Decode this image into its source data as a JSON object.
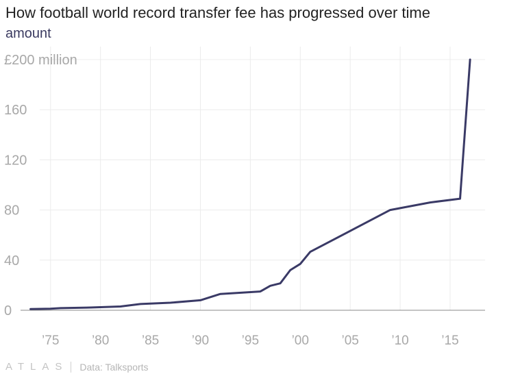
{
  "header": {
    "title": "How football world record transfer fee has progressed over time",
    "subtitle": "amount"
  },
  "footer": {
    "brand": "ATLAS",
    "source": "Data: Talksports"
  },
  "colors": {
    "line": "#3a3a66",
    "grid": "#ececec",
    "axis_text": "#a8a8a8",
    "baseline": "#888888"
  },
  "chart_data": {
    "type": "line",
    "title": "How football world record transfer fee has progressed over time",
    "subtitle": "amount",
    "xlabel": "",
    "ylabel": "",
    "xlim": [
      1972,
      2018.5
    ],
    "ylim": [
      0,
      200
    ],
    "x_ticks": [
      1975,
      1980,
      1985,
      1990,
      1995,
      2000,
      2005,
      2010,
      2015
    ],
    "x_tick_labels": [
      "’75",
      "’80",
      "’85",
      "’90",
      "’95",
      "’00",
      "’05",
      "’10",
      "’15"
    ],
    "y_ticks": [
      0,
      40,
      80,
      120,
      160,
      200
    ],
    "y_tick_labels": [
      "0",
      "40",
      "80",
      "120",
      "160",
      "£200 million"
    ],
    "grid": true,
    "series": [
      {
        "x": [
          1973,
          1975,
          1976,
          1979,
          1982,
          1984,
          1987,
          1990,
          1992,
          1996,
          1997,
          1998,
          1999,
          2000,
          2001,
          2009,
          2013,
          2016,
          2017
        ],
        "y": [
          1,
          1.2,
          1.7,
          2.2,
          3,
          5,
          6,
          8,
          13,
          15,
          19.5,
          21.5,
          32,
          37,
          46.6,
          80,
          86,
          89,
          200
        ]
      }
    ]
  }
}
